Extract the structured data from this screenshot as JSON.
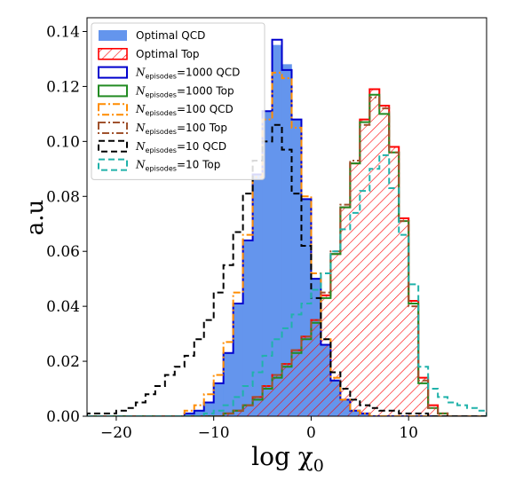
{
  "chart_data": {
    "type": "histogram",
    "xlabel": "log χ",
    "xlabel_subscript": "0",
    "ylabel": "a.u",
    "xlim": [
      -23,
      18
    ],
    "ylim": [
      0,
      0.145
    ],
    "bin_edges": [
      -23,
      -22,
      -21,
      -20,
      -19,
      -18,
      -17,
      -16,
      -15,
      -14,
      -13,
      -12,
      -11,
      -10,
      -9,
      -8,
      -7,
      -6,
      -5,
      -4,
      -3,
      -2,
      -1,
      0,
      1,
      2,
      3,
      4,
      5,
      6,
      7,
      8,
      9,
      10,
      11,
      12,
      13,
      14,
      15,
      16,
      17,
      18
    ],
    "x_ticks": [
      {
        "value": -20,
        "label": "−20"
      },
      {
        "value": -10,
        "label": "−10"
      },
      {
        "value": 0,
        "label": "0"
      },
      {
        "value": 10,
        "label": "10"
      }
    ],
    "y_ticks": [
      {
        "value": 0.0,
        "label": "0.00"
      },
      {
        "value": 0.02,
        "label": "0.02"
      },
      {
        "value": 0.04,
        "label": "0.04"
      },
      {
        "value": 0.06,
        "label": "0.06"
      },
      {
        "value": 0.08,
        "label": "0.08"
      },
      {
        "value": 0.1,
        "label": "0.10"
      },
      {
        "value": 0.12,
        "label": "0.12"
      },
      {
        "value": 0.14,
        "label": "0.14"
      }
    ],
    "legend_position": "top-left",
    "series": [
      {
        "name": "Optimal QCD",
        "style": "fill",
        "color": "#6495ED",
        "values": [
          0,
          0,
          0,
          0,
          0,
          0,
          0,
          0,
          0,
          0,
          0.001,
          0.002,
          0.005,
          0.012,
          0.023,
          0.041,
          0.064,
          0.088,
          0.111,
          0.135,
          0.128,
          0.108,
          0.079,
          0.05,
          0.026,
          0.013,
          0.006,
          0.002,
          0.001,
          0,
          0,
          0,
          0,
          0,
          0,
          0,
          0,
          0,
          0,
          0,
          0
        ]
      },
      {
        "name": "Optimal Top",
        "style": "hatch",
        "color": "#FF0000",
        "values": [
          0,
          0,
          0,
          0,
          0,
          0,
          0,
          0,
          0,
          0,
          0,
          0,
          0,
          0,
          0.001,
          0.002,
          0.004,
          0.007,
          0.011,
          0.015,
          0.019,
          0.024,
          0.029,
          0.035,
          0.044,
          0.059,
          0.076,
          0.092,
          0.108,
          0.119,
          0.113,
          0.098,
          0.072,
          0.042,
          0.014,
          0.004,
          0.001,
          0,
          0,
          0,
          0
        ]
      },
      {
        "name": "=1000 QCD",
        "name_prefix": "N",
        "name_sub": "episodes",
        "style": "step",
        "dash": "solid",
        "color": "#0000CD",
        "values": [
          0,
          0,
          0,
          0,
          0,
          0,
          0,
          0,
          0,
          0,
          0.001,
          0.002,
          0.005,
          0.012,
          0.023,
          0.041,
          0.064,
          0.088,
          0.111,
          0.137,
          0.126,
          0.108,
          0.079,
          0.05,
          0.026,
          0.013,
          0.006,
          0.002,
          0.001,
          0,
          0,
          0,
          0,
          0,
          0,
          0,
          0,
          0,
          0,
          0,
          0
        ]
      },
      {
        "name": "=1000 Top",
        "name_prefix": "N",
        "name_sub": "episodes",
        "style": "step",
        "dash": "solid",
        "color": "#228B22",
        "values": [
          0,
          0,
          0,
          0,
          0,
          0,
          0,
          0,
          0,
          0,
          0,
          0,
          0,
          0,
          0.001,
          0.002,
          0.004,
          0.006,
          0.01,
          0.014,
          0.018,
          0.023,
          0.028,
          0.034,
          0.043,
          0.059,
          0.076,
          0.092,
          0.107,
          0.117,
          0.11,
          0.096,
          0.071,
          0.041,
          0.012,
          0.003,
          0.001,
          0,
          0,
          0,
          0
        ]
      },
      {
        "name": "=100 QCD",
        "name_prefix": "N",
        "name_sub": "episodes",
        "style": "step",
        "dash": "dashdot",
        "color": "#FF8C00",
        "values": [
          0,
          0,
          0,
          0,
          0,
          0,
          0,
          0,
          0,
          0,
          0.002,
          0.004,
          0.008,
          0.015,
          0.027,
          0.045,
          0.066,
          0.087,
          0.108,
          0.125,
          0.123,
          0.105,
          0.08,
          0.052,
          0.028,
          0.014,
          0.006,
          0.002,
          0.001,
          0,
          0,
          0,
          0,
          0,
          0,
          0,
          0,
          0,
          0,
          0,
          0
        ]
      },
      {
        "name": "=100 Top",
        "name_prefix": "N",
        "name_sub": "episodes",
        "style": "step",
        "dash": "dashdot",
        "color": "#A0522D",
        "values": [
          0,
          0,
          0,
          0,
          0,
          0,
          0,
          0,
          0,
          0,
          0,
          0,
          0,
          0,
          0.001,
          0.002,
          0.004,
          0.007,
          0.011,
          0.015,
          0.019,
          0.024,
          0.029,
          0.035,
          0.045,
          0.06,
          0.077,
          0.093,
          0.106,
          0.116,
          0.112,
          0.096,
          0.071,
          0.04,
          0.013,
          0.003,
          0.001,
          0,
          0,
          0,
          0
        ]
      },
      {
        "name": "=10 QCD",
        "name_prefix": "N",
        "name_sub": "episodes",
        "style": "step",
        "dash": "dashed",
        "color": "#000000",
        "values": [
          0.001,
          0.001,
          0.001,
          0.002,
          0.003,
          0.005,
          0.008,
          0.011,
          0.015,
          0.018,
          0.022,
          0.028,
          0.035,
          0.045,
          0.055,
          0.067,
          0.081,
          0.093,
          0.1,
          0.106,
          0.097,
          0.081,
          0.062,
          0.043,
          0.028,
          0.016,
          0.01,
          0.006,
          0.004,
          0.003,
          0.002,
          0.002,
          0.001,
          0.001,
          0.001,
          0,
          0,
          0,
          0,
          0,
          0
        ]
      },
      {
        "name": "=10 Top",
        "name_prefix": "N",
        "name_sub": "episodes",
        "style": "step",
        "dash": "dashed",
        "color": "#20B2AA",
        "values": [
          0,
          0,
          0,
          0,
          0,
          0,
          0,
          0,
          0,
          0,
          0,
          0,
          0.001,
          0.002,
          0.004,
          0.007,
          0.011,
          0.016,
          0.022,
          0.028,
          0.032,
          0.037,
          0.041,
          0.046,
          0.052,
          0.06,
          0.068,
          0.074,
          0.082,
          0.09,
          0.095,
          0.083,
          0.066,
          0.048,
          0.018,
          0.01,
          0.007,
          0.005,
          0.004,
          0.003,
          0.002
        ]
      }
    ]
  }
}
